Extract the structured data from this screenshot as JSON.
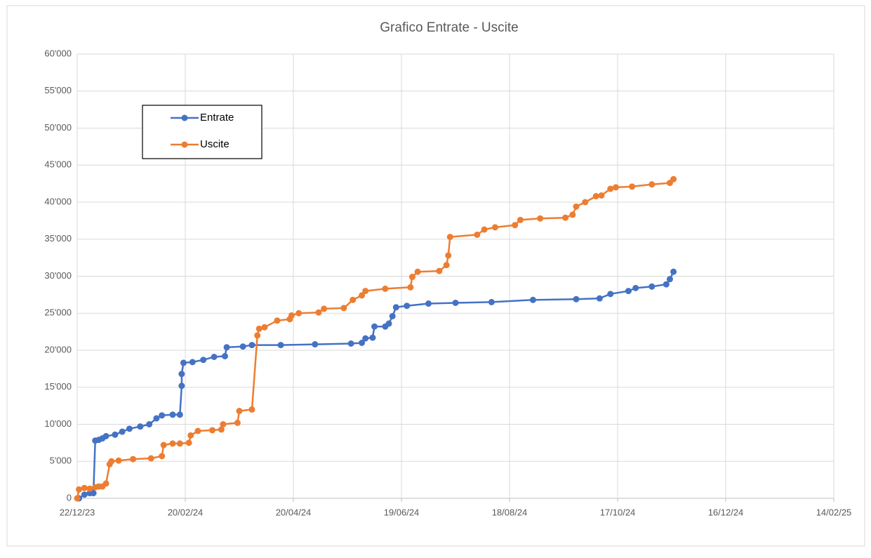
{
  "chart_data": {
    "type": "line",
    "title": "Grafico Entrate - Uscite",
    "xlim": [
      "2023-12-22",
      "2025-02-14"
    ],
    "xticks": [
      {
        "value": "2023-12-22",
        "label": "22/12/23"
      },
      {
        "value": "2024-02-20",
        "label": "20/02/24"
      },
      {
        "value": "2024-04-20",
        "label": "20/04/24"
      },
      {
        "value": "2024-06-19",
        "label": "19/06/24"
      },
      {
        "value": "2024-08-18",
        "label": "18/08/24"
      },
      {
        "value": "2024-10-17",
        "label": "17/10/24"
      },
      {
        "value": "2024-12-16",
        "label": "16/12/24"
      },
      {
        "value": "2025-02-14",
        "label": "14/02/25"
      }
    ],
    "ylim": [
      0,
      60000
    ],
    "yticks": [
      0,
      {
        "value": 5000,
        "label": "5'000"
      },
      {
        "value": 10000,
        "label": "10'000"
      },
      {
        "value": 15000,
        "label": "15'000"
      },
      {
        "value": 20000,
        "label": "20'000"
      },
      {
        "value": 25000,
        "label": "25'000"
      },
      {
        "value": 30000,
        "label": "30'000"
      },
      {
        "value": 35000,
        "label": "35'000"
      },
      {
        "value": 40000,
        "label": "40'000"
      },
      {
        "value": 45000,
        "label": "45'000"
      },
      {
        "value": 50000,
        "label": "50'000"
      },
      {
        "value": 55000,
        "label": "55'000"
      },
      {
        "value": 60000,
        "label": "60'000"
      }
    ],
    "grid": true,
    "legend": "upper left",
    "series": [
      {
        "name": "Entrate",
        "color": "#4472C4",
        "x": [
          "2023-12-23",
          "2023-12-26",
          "2023-12-29",
          "2023-12-31",
          "2024-01-01",
          "2024-01-03",
          "2024-01-05",
          "2024-01-07",
          "2024-01-12",
          "2024-01-16",
          "2024-01-20",
          "2024-01-26",
          "2024-01-31",
          "2024-02-04",
          "2024-02-07",
          "2024-02-13",
          "2024-02-17",
          "2024-02-18",
          "2024-02-18",
          "2024-02-19",
          "2024-02-24",
          "2024-03-01",
          "2024-03-07",
          "2024-03-13",
          "2024-03-14",
          "2024-03-23",
          "2024-03-28",
          "2024-04-13",
          "2024-05-02",
          "2024-05-22",
          "2024-05-28",
          "2024-05-30",
          "2024-06-03",
          "2024-06-04",
          "2024-06-10",
          "2024-06-12",
          "2024-06-14",
          "2024-06-16",
          "2024-06-22",
          "2024-07-04",
          "2024-07-19",
          "2024-08-08",
          "2024-08-31",
          "2024-09-24",
          "2024-10-07",
          "2024-10-13",
          "2024-10-23",
          "2024-10-27",
          "2024-11-05",
          "2024-11-13",
          "2024-11-15",
          "2024-11-17"
        ],
        "values": [
          0,
          500,
          700,
          700,
          7800,
          7900,
          8100,
          8400,
          8600,
          9000,
          9400,
          9700,
          10000,
          10800,
          11200,
          11300,
          11300,
          15200,
          16800,
          18300,
          18400,
          18700,
          19100,
          19200,
          20400,
          20500,
          20700,
          20700,
          20800,
          20900,
          21000,
          21600,
          21700,
          23200,
          23200,
          23600,
          24600,
          25800,
          26000,
          26300,
          26400,
          26500,
          26800,
          26900,
          27000,
          27600,
          28000,
          28400,
          28600,
          28900,
          29600,
          30600
        ]
      },
      {
        "name": "Uscite",
        "color": "#ED7D31",
        "x": [
          "2023-12-22",
          "2023-12-23",
          "2023-12-26",
          "2023-12-29",
          "2024-01-01",
          "2024-01-03",
          "2024-01-05",
          "2024-01-07",
          "2024-01-09",
          "2024-01-10",
          "2024-01-14",
          "2024-01-22",
          "2024-02-01",
          "2024-02-07",
          "2024-02-08",
          "2024-02-13",
          "2024-02-17",
          "2024-02-22",
          "2024-02-23",
          "2024-02-27",
          "2024-03-06",
          "2024-03-11",
          "2024-03-12",
          "2024-03-20",
          "2024-03-21",
          "2024-03-28",
          "2024-03-31",
          "2024-04-01",
          "2024-04-04",
          "2024-04-11",
          "2024-04-18",
          "2024-04-19",
          "2024-04-23",
          "2024-05-04",
          "2024-05-07",
          "2024-05-18",
          "2024-05-23",
          "2024-05-28",
          "2024-05-30",
          "2024-06-10",
          "2024-06-24",
          "2024-06-25",
          "2024-06-28",
          "2024-07-10",
          "2024-07-14",
          "2024-07-15",
          "2024-07-16",
          "2024-07-31",
          "2024-08-04",
          "2024-08-10",
          "2024-08-21",
          "2024-08-24",
          "2024-09-04",
          "2024-09-18",
          "2024-09-22",
          "2024-09-24",
          "2024-09-29",
          "2024-10-05",
          "2024-10-08",
          "2024-10-13",
          "2024-10-16",
          "2024-10-25",
          "2024-11-05",
          "2024-11-15",
          "2024-11-17"
        ],
        "values": [
          0,
          1200,
          1400,
          1300,
          1500,
          1600,
          1600,
          2000,
          4600,
          5000,
          5100,
          5300,
          5400,
          5700,
          7200,
          7400,
          7400,
          7500,
          8500,
          9100,
          9200,
          9300,
          10000,
          10200,
          11800,
          12000,
          22000,
          22900,
          23100,
          24000,
          24200,
          24700,
          25000,
          25100,
          25600,
          25700,
          26800,
          27400,
          28000,
          28300,
          28500,
          29900,
          30600,
          30700,
          31500,
          32800,
          35300,
          35600,
          36300,
          36600,
          36900,
          37600,
          37800,
          37900,
          38300,
          39400,
          40000,
          40800,
          40900,
          41800,
          42000,
          42100,
          42400,
          42600,
          43100
        ]
      }
    ]
  }
}
